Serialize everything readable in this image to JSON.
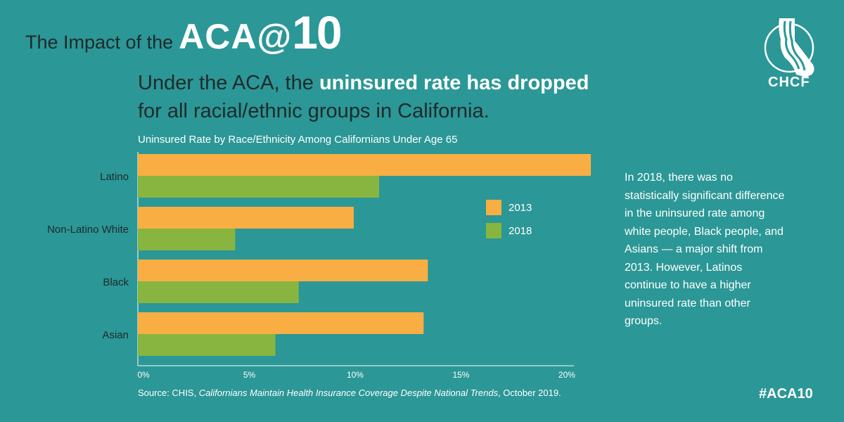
{
  "header": {
    "kicker": "The Impact of the",
    "brand_aca": "ACA@",
    "brand_ten": "10"
  },
  "headline": {
    "part1": "Under the ACA, the ",
    "highlight": "uninsured rate has dropped",
    "part2": "for all racial/ethnic groups in California."
  },
  "chart_data": {
    "type": "bar",
    "orientation": "horizontal",
    "title": "Uninsured Rate by Race/Ethnicity Among Californians Under Age 65",
    "categories": [
      "Latino",
      "Non-Latino White",
      "Black",
      "Asian"
    ],
    "series": [
      {
        "name": "2013",
        "color": "#f9ae43",
        "values": [
          21.4,
          10.2,
          13.7,
          13.5
        ]
      },
      {
        "name": "2018",
        "color": "#87b540",
        "values": [
          11.4,
          4.6,
          7.6,
          6.5
        ]
      }
    ],
    "x_ticks": [
      "0%",
      "5%",
      "10%",
      "15%",
      "20%"
    ],
    "xlim": [
      0,
      20.6
    ],
    "legend_position": "right"
  },
  "note": "In 2018, there was no statistically significant difference in the uninsured rate among white people, Black people, and Asians — a major shift from 2013. However, Latinos continue to have a higher uninsured rate than other groups.",
  "source": {
    "prefix": "Source: CHIS, ",
    "title": "Californians Maintain Health Insurance Coverage Despite National Trends",
    "suffix": ", October 2019."
  },
  "logo": {
    "text": "CHCF",
    "icon": "california-state-icon"
  },
  "hashtag": "#ACA10",
  "colors": {
    "background": "#2b9796",
    "dark_text": "#1f2a2c",
    "bar_2013": "#f9ae43",
    "bar_2018": "#87b540"
  }
}
